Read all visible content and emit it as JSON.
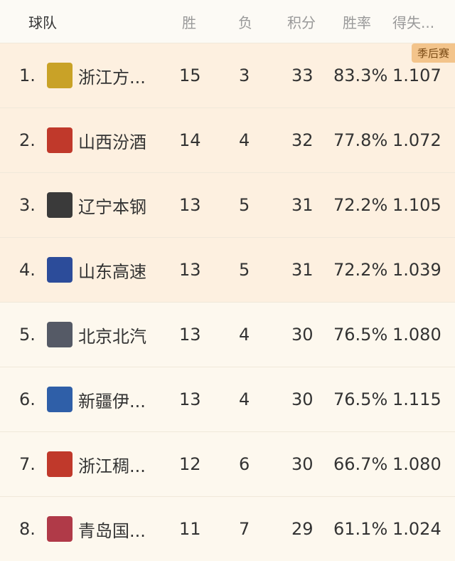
{
  "header": {
    "team": "球队",
    "wins": "胜",
    "losses": "负",
    "points": "积分",
    "win_pct": "胜率",
    "diff": "得失..."
  },
  "playoff_badge": "季后赛",
  "colors": {
    "playoff_bg": "#fdf0e0",
    "normal_bg": "#fdf8ee",
    "badge": "#f3c48b"
  },
  "rows": [
    {
      "rank": "1.",
      "name": "浙江方...",
      "w": "15",
      "l": "3",
      "p": "33",
      "pct": "83.3%",
      "diff": "1.107",
      "logo_color": "#c9a227"
    },
    {
      "rank": "2.",
      "name": "山西汾酒",
      "w": "14",
      "l": "4",
      "p": "32",
      "pct": "77.8%",
      "diff": "1.072",
      "logo_color": "#c0392b"
    },
    {
      "rank": "3.",
      "name": "辽宁本钢",
      "w": "13",
      "l": "5",
      "p": "31",
      "pct": "72.2%",
      "diff": "1.105",
      "logo_color": "#3a3a3a"
    },
    {
      "rank": "4.",
      "name": "山东高速",
      "w": "13",
      "l": "5",
      "p": "31",
      "pct": "72.2%",
      "diff": "1.039",
      "logo_color": "#2c4c9a"
    },
    {
      "rank": "5.",
      "name": "北京北汽",
      "w": "13",
      "l": "4",
      "p": "30",
      "pct": "76.5%",
      "diff": "1.080",
      "logo_color": "#555a66"
    },
    {
      "rank": "6.",
      "name": "新疆伊...",
      "w": "13",
      "l": "4",
      "p": "30",
      "pct": "76.5%",
      "diff": "1.115",
      "logo_color": "#2f5fa8"
    },
    {
      "rank": "7.",
      "name": "浙江稠...",
      "w": "12",
      "l": "6",
      "p": "30",
      "pct": "66.7%",
      "diff": "1.080",
      "logo_color": "#c0392b"
    },
    {
      "rank": "8.",
      "name": "青岛国...",
      "w": "11",
      "l": "7",
      "p": "29",
      "pct": "61.1%",
      "diff": "1.024",
      "logo_color": "#b03a48"
    }
  ]
}
